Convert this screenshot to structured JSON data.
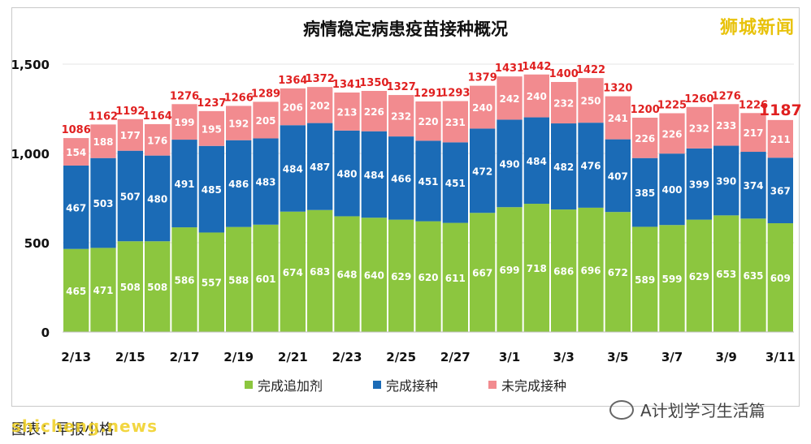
{
  "title": "病情稳定病患疫苗接种概况",
  "brand": "狮城新闻",
  "source": "图表：早报小格",
  "watermark": "shicheng.news",
  "wechat_account": "A计划学习生活篇",
  "colors": {
    "booster": "#8cc63f",
    "full": "#1b6bb6",
    "unvaccinated": "#f28b8f",
    "total_label": "#e02020",
    "grid": "#e4e4e4"
  },
  "chart_data": {
    "type": "bar",
    "stacked": true,
    "title": "病情稳定病患疫苗接种概况",
    "categories": [
      "2/13",
      "2/14",
      "2/15",
      "2/16",
      "2/17",
      "2/18",
      "2/19",
      "2/20",
      "2/21",
      "2/22",
      "2/23",
      "2/24",
      "2/25",
      "2/26",
      "2/27",
      "2/28",
      "3/1",
      "3/2",
      "3/3",
      "3/4",
      "3/5",
      "3/6",
      "3/7",
      "3/8",
      "3/9",
      "3/10",
      "3/11"
    ],
    "tick_labels": [
      "2/13",
      "",
      "2/15",
      "",
      "2/17",
      "",
      "2/19",
      "",
      "2/21",
      "",
      "2/23",
      "",
      "2/25",
      "",
      "2/27",
      "",
      "3/1",
      "",
      "3/3",
      "",
      "3/5",
      "",
      "3/7",
      "",
      "3/9",
      "",
      "3/11"
    ],
    "series": [
      {
        "name": "完成追加剂",
        "values": [
          465,
          471,
          508,
          508,
          586,
          557,
          588,
          601,
          674,
          683,
          648,
          640,
          629,
          620,
          611,
          667,
          699,
          718,
          686,
          696,
          672,
          589,
          599,
          629,
          653,
          635,
          609
        ]
      },
      {
        "name": "完成接种",
        "values": [
          467,
          503,
          507,
          480,
          491,
          485,
          486,
          483,
          484,
          487,
          480,
          484,
          466,
          451,
          451,
          472,
          490,
          484,
          482,
          476,
          407,
          385,
          400,
          399,
          390,
          374,
          367
        ]
      },
      {
        "name": "未完成接种",
        "values": [
          154,
          188,
          177,
          176,
          199,
          195,
          192,
          205,
          206,
          202,
          213,
          226,
          232,
          220,
          231,
          240,
          242,
          240,
          232,
          250,
          241,
          226,
          226,
          232,
          233,
          217,
          211
        ]
      }
    ],
    "totals": [
      1086,
      1162,
      1192,
      1164,
      1276,
      1237,
      1266,
      1289,
      1364,
      1372,
      1341,
      1350,
      1327,
      1291,
      1293,
      1379,
      1431,
      1442,
      1400,
      1422,
      1320,
      1200,
      1225,
      1260,
      1276,
      1226,
      1187
    ],
    "y_ticks": [
      "0",
      "500",
      "1,000",
      "1,500"
    ],
    "ylim": [
      0,
      1500
    ],
    "grid": true,
    "legend_position": "bottom"
  }
}
